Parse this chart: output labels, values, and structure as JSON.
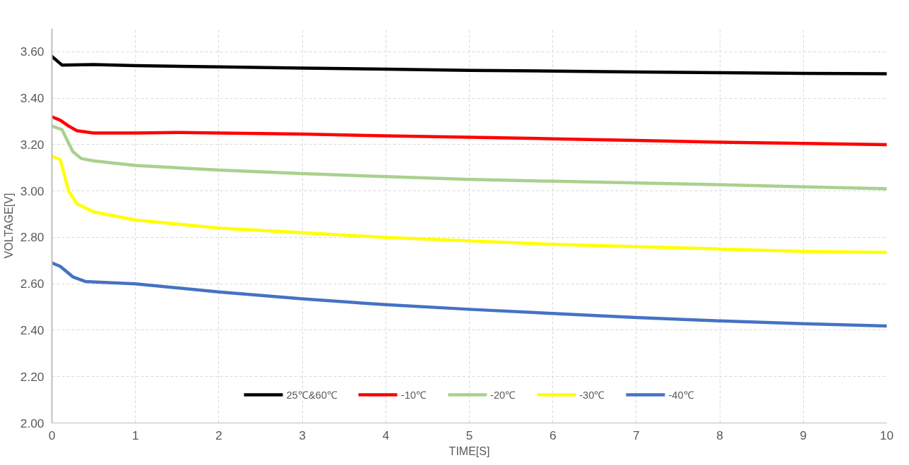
{
  "chart_data": {
    "type": "line",
    "xlabel": "TIME[S]",
    "ylabel": "VOLTAGE[V]",
    "xlim": [
      0,
      10
    ],
    "xticks": [
      0,
      1,
      2,
      3,
      4,
      5,
      6,
      7,
      8,
      9,
      10
    ],
    "ylim": [
      2,
      3.7
    ],
    "yticks": [
      {
        "value": 2,
        "label": "2.00"
      },
      {
        "value": 2.2,
        "label": "2.20"
      },
      {
        "value": 2.4,
        "label": "2.40"
      },
      {
        "value": 2.6,
        "label": "2.60"
      },
      {
        "value": 2.8,
        "label": "2.80"
      },
      {
        "value": 3,
        "label": "3.00"
      },
      {
        "value": 3.2,
        "label": "3.20"
      },
      {
        "value": 3.4,
        "label": "3.40"
      },
      {
        "value": 3.6,
        "label": "3.60"
      }
    ],
    "grid": true,
    "legend": "bottom",
    "marker": "none",
    "line_style": "solid",
    "series": [
      {
        "name": "25℃&60℃",
        "color": "#000000",
        "x": [
          0,
          0.12,
          0.5,
          1,
          2,
          3,
          4,
          5,
          6,
          7,
          8,
          9,
          10
        ],
        "values": [
          3.58,
          3.543,
          3.545,
          3.54,
          3.535,
          3.53,
          3.525,
          3.52,
          3.517,
          3.513,
          3.51,
          3.507,
          3.505
        ]
      },
      {
        "name": "-10℃",
        "color": "#ff0000",
        "x": [
          0,
          0.1,
          0.2,
          0.3,
          0.5,
          1,
          1.5,
          2,
          3,
          4,
          5,
          6,
          7,
          8,
          9,
          10
        ],
        "values": [
          3.32,
          3.305,
          3.28,
          3.26,
          3.25,
          3.25,
          3.252,
          3.25,
          3.245,
          3.238,
          3.232,
          3.225,
          3.218,
          3.21,
          3.205,
          3.2
        ]
      },
      {
        "name": "-20℃",
        "color": "#a9d18e",
        "x": [
          0,
          0.12,
          0.25,
          0.35,
          0.5,
          1,
          2,
          3,
          4,
          5,
          6,
          7,
          8,
          9,
          10
        ],
        "values": [
          3.28,
          3.265,
          3.17,
          3.14,
          3.13,
          3.11,
          3.09,
          3.075,
          3.062,
          3.05,
          3.042,
          3.035,
          3.027,
          3.018,
          3.01
        ]
      },
      {
        "name": "-30℃",
        "color": "#ffff00",
        "x": [
          0,
          0.1,
          0.2,
          0.3,
          0.5,
          1,
          2,
          3,
          4,
          5,
          6,
          7,
          8,
          9,
          10
        ],
        "values": [
          3.15,
          3.135,
          3.0,
          2.945,
          2.91,
          2.875,
          2.84,
          2.82,
          2.8,
          2.785,
          2.77,
          2.76,
          2.75,
          2.74,
          2.735
        ]
      },
      {
        "name": "-40℃",
        "color": "#4472c4",
        "x": [
          0,
          0.1,
          0.25,
          0.4,
          1,
          2,
          3,
          4,
          5,
          6,
          7,
          8,
          9,
          10
        ],
        "values": [
          2.69,
          2.675,
          2.63,
          2.61,
          2.6,
          2.565,
          2.535,
          2.51,
          2.49,
          2.472,
          2.455,
          2.44,
          2.428,
          2.418
        ]
      }
    ]
  }
}
